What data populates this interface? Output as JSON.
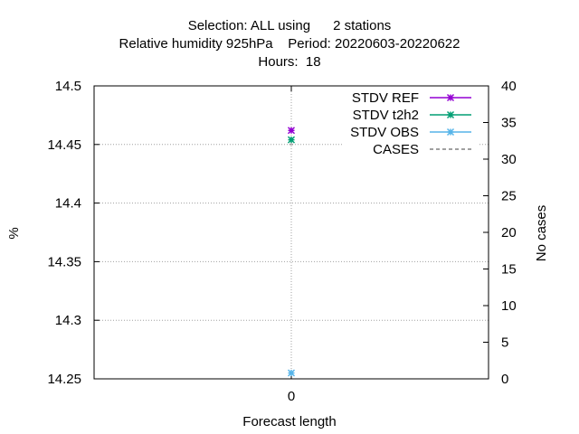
{
  "chart_data": {
    "type": "scatter",
    "title_lines": [
      "Selection: ALL using      2 stations",
      "Relative humidity 925hPa    Period: 20220603-20220622",
      "Hours:  18"
    ],
    "xlabel": "Forecast length",
    "ylabel": "%",
    "y2label": "No cases",
    "x_ticks": [
      "0"
    ],
    "y_ticks": [
      "14.25",
      "14.3",
      "14.35",
      "14.4",
      "14.45",
      "14.5"
    ],
    "y2_ticks": [
      "0",
      "5",
      "10",
      "15",
      "20",
      "25",
      "30",
      "35",
      "40"
    ],
    "ylim": [
      14.25,
      14.5
    ],
    "y2lim": [
      0,
      40
    ],
    "grid": true,
    "legend_position": "top-right",
    "series": [
      {
        "name": "STDV REF",
        "color": "#9400d3",
        "marker": "star",
        "axis": "y",
        "x": [
          0
        ],
        "y": [
          14.462
        ]
      },
      {
        "name": "STDV t2h2",
        "color": "#009e73",
        "marker": "star",
        "axis": "y",
        "x": [
          0
        ],
        "y": [
          14.454
        ]
      },
      {
        "name": "STDV OBS",
        "color": "#56b4e9",
        "marker": "star",
        "axis": "y",
        "x": [
          0
        ],
        "y": [
          14.255
        ]
      },
      {
        "name": "CASES",
        "color": "#808080",
        "marker": "dashed",
        "axis": "y2",
        "x": [
          0
        ],
        "y": [
          32
        ]
      }
    ]
  }
}
